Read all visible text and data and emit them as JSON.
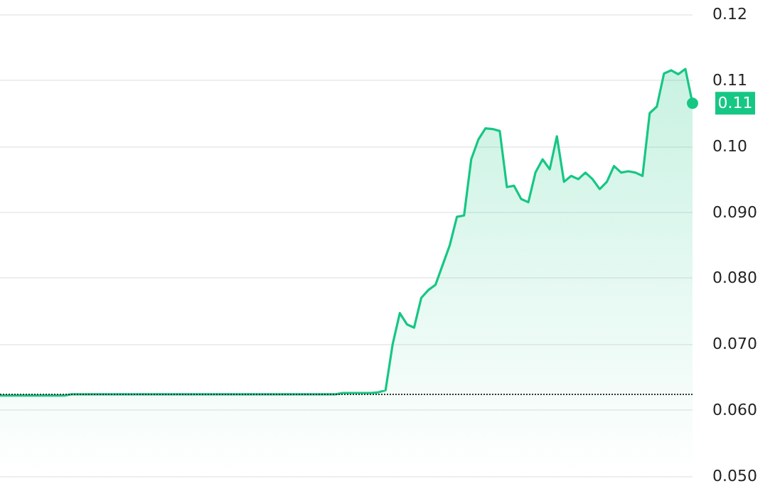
{
  "chart_data": {
    "type": "area",
    "categories": [
      null,
      null,
      null,
      null,
      null,
      null,
      null,
      null,
      null,
      null,
      null,
      null,
      null,
      null,
      null,
      null,
      null,
      null,
      null,
      null,
      null,
      null,
      null,
      null,
      null,
      null,
      null,
      null,
      null,
      null,
      null,
      null,
      null,
      null,
      null,
      null,
      null,
      null,
      null,
      null,
      null,
      null,
      null,
      null,
      null,
      null,
      null,
      null,
      null,
      null,
      null,
      null,
      null,
      null,
      null,
      null,
      null,
      null,
      null,
      null,
      null,
      null,
      null,
      null,
      null,
      null,
      null,
      null,
      null,
      null,
      null,
      null,
      null,
      null,
      null,
      null,
      null,
      null,
      null,
      null,
      null,
      null,
      null,
      null,
      null,
      null,
      null,
      null,
      null,
      null,
      null,
      null,
      null,
      null,
      null,
      null,
      null,
      null
    ],
    "series": [
      {
        "color": "#16c784",
        "values": [
          0.0622,
          0.0622,
          0.0622,
          0.0622,
          0.0622,
          0.0622,
          0.0622,
          0.0622,
          0.0622,
          0.0622,
          0.0624,
          0.0624,
          0.0624,
          0.0624,
          0.0624,
          0.0624,
          0.0624,
          0.0624,
          0.0624,
          0.0624,
          0.0624,
          0.0624,
          0.0624,
          0.0624,
          0.0624,
          0.0624,
          0.0624,
          0.0624,
          0.0624,
          0.0624,
          0.0624,
          0.0624,
          0.0624,
          0.0624,
          0.0624,
          0.0624,
          0.0624,
          0.0624,
          0.0624,
          0.0624,
          0.0624,
          0.0624,
          0.0624,
          0.0624,
          0.0624,
          0.0624,
          0.0624,
          0.0624,
          0.0626,
          0.0626,
          0.0626,
          0.0626,
          0.0626,
          0.0627,
          0.063,
          0.07,
          0.0747,
          0.073,
          0.0725,
          0.077,
          0.0782,
          0.079,
          0.082,
          0.085,
          0.0893,
          0.0895,
          0.098,
          0.101,
          0.1027,
          0.1026,
          0.1023,
          0.0938,
          0.094,
          0.092,
          0.0915,
          0.096,
          0.098,
          0.0965,
          0.1015,
          0.0946,
          0.0955,
          0.095,
          0.096,
          0.095,
          0.0935,
          0.0946,
          0.097,
          0.096,
          0.0962,
          0.096,
          0.0955,
          0.105,
          0.106,
          0.111,
          0.1115,
          0.1109,
          0.1117,
          0.1065
        ]
      }
    ],
    "ylim": [
      0.05,
      0.12
    ],
    "yticks": [
      {
        "value": 0.05,
        "label": "0.050"
      },
      {
        "value": 0.06,
        "label": "0.060"
      },
      {
        "value": 0.07,
        "label": "0.070"
      },
      {
        "value": 0.08,
        "label": "0.080"
      },
      {
        "value": 0.09,
        "label": "0.090"
      },
      {
        "value": 0.1,
        "label": "0.10"
      },
      0.11,
      0.12
    ],
    "grid": "y",
    "line_style": "solid",
    "ref_lines": [
      {
        "axis": "y",
        "value": 0.0624,
        "color": "#333333",
        "line_style": "dotted"
      }
    ],
    "annotations": [
      "0.11"
    ]
  }
}
